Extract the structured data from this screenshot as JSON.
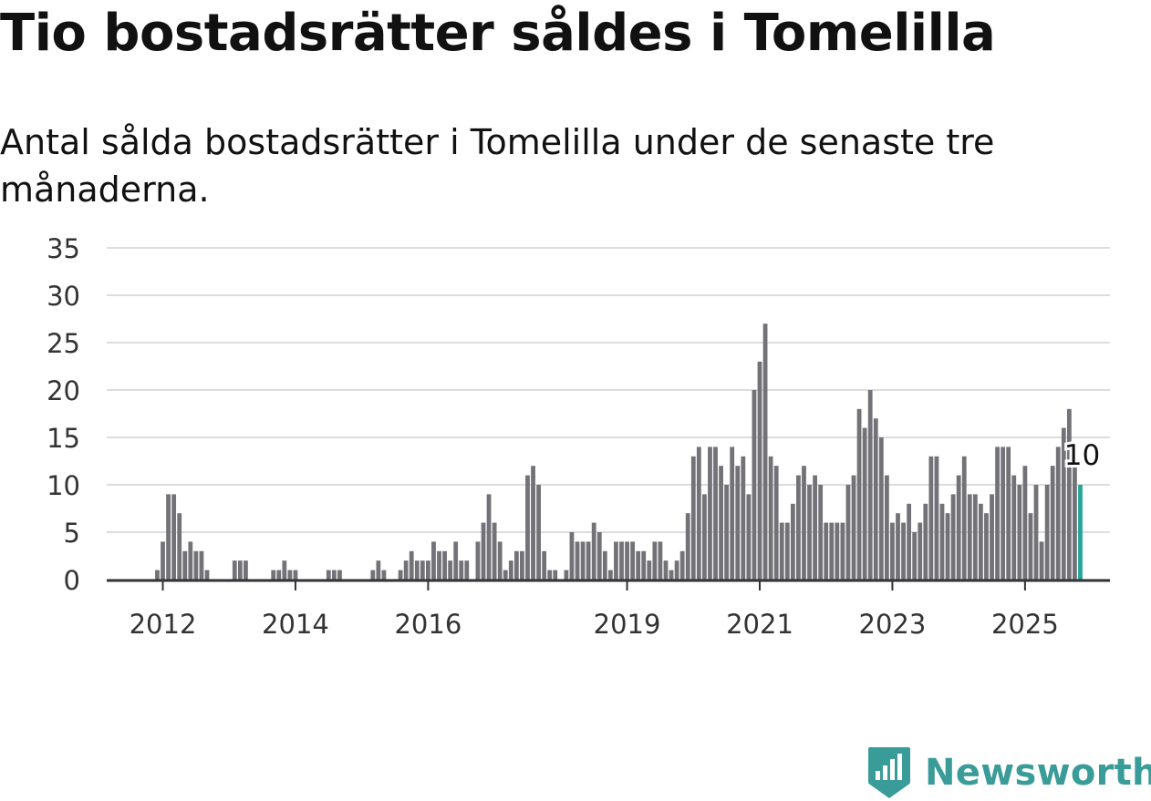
{
  "header": {
    "title": "Tio bostadsrätter såldes i Tomelilla",
    "subtitle": "Antal sålda bostadsrätter i Tomelilla under de senaste tre månaderna."
  },
  "brand": {
    "name": "Newsworthy",
    "color": "#3a9c98",
    "icon": "newsworthy-logo-icon"
  },
  "chart_data": {
    "type": "bar",
    "title": "Tio bostadsrätter såldes i Tomelilla",
    "subtitle": "Antal sålda bostadsrätter i Tomelilla under de senaste tre månaderna.",
    "xlabel": "",
    "ylabel": "",
    "ylim": [
      0,
      35
    ],
    "yticks": [
      0,
      5,
      10,
      15,
      20,
      25,
      30,
      35
    ],
    "grid": true,
    "xticks": [
      {
        "label": "2012",
        "index": 2
      },
      {
        "label": "2014",
        "index": 26
      },
      {
        "label": "2016",
        "index": 50
      },
      {
        "label": "2019",
        "index": 86
      },
      {
        "label": "2021",
        "index": 110
      },
      {
        "label": "2023",
        "index": 134
      },
      {
        "label": "2025",
        "index": 158
      }
    ],
    "bar_color": "#737278",
    "highlight_color": "#27a59b",
    "highlight_label": "10",
    "values": [
      0,
      1,
      4,
      9,
      9,
      7,
      3,
      4,
      3,
      3,
      1,
      0,
      0,
      0,
      0,
      2,
      2,
      2,
      0,
      0,
      0,
      0,
      1,
      1,
      2,
      1,
      1,
      0,
      0,
      0,
      0,
      0,
      1,
      1,
      1,
      0,
      0,
      0,
      0,
      0,
      1,
      2,
      1,
      0,
      0,
      1,
      2,
      3,
      2,
      2,
      2,
      4,
      3,
      3,
      2,
      4,
      2,
      2,
      0,
      4,
      6,
      9,
      6,
      4,
      1,
      2,
      3,
      3,
      11,
      12,
      10,
      3,
      1,
      1,
      0,
      1,
      5,
      4,
      4,
      4,
      6,
      5,
      3,
      1,
      4,
      4,
      4,
      4,
      3,
      3,
      2,
      4,
      4,
      2,
      1,
      2,
      3,
      7,
      13,
      14,
      9,
      14,
      14,
      12,
      10,
      14,
      12,
      13,
      9,
      20,
      23,
      27,
      13,
      12,
      6,
      6,
      8,
      11,
      12,
      10,
      11,
      10,
      6,
      6,
      6,
      6,
      10,
      11,
      18,
      16,
      20,
      17,
      15,
      11,
      6,
      7,
      6,
      8,
      5,
      6,
      8,
      13,
      13,
      8,
      7,
      9,
      11,
      13,
      9,
      9,
      8,
      7,
      9,
      14,
      14,
      14,
      11,
      10,
      12,
      7,
      10,
      4,
      10,
      12,
      14,
      16,
      18,
      12,
      10
    ]
  }
}
